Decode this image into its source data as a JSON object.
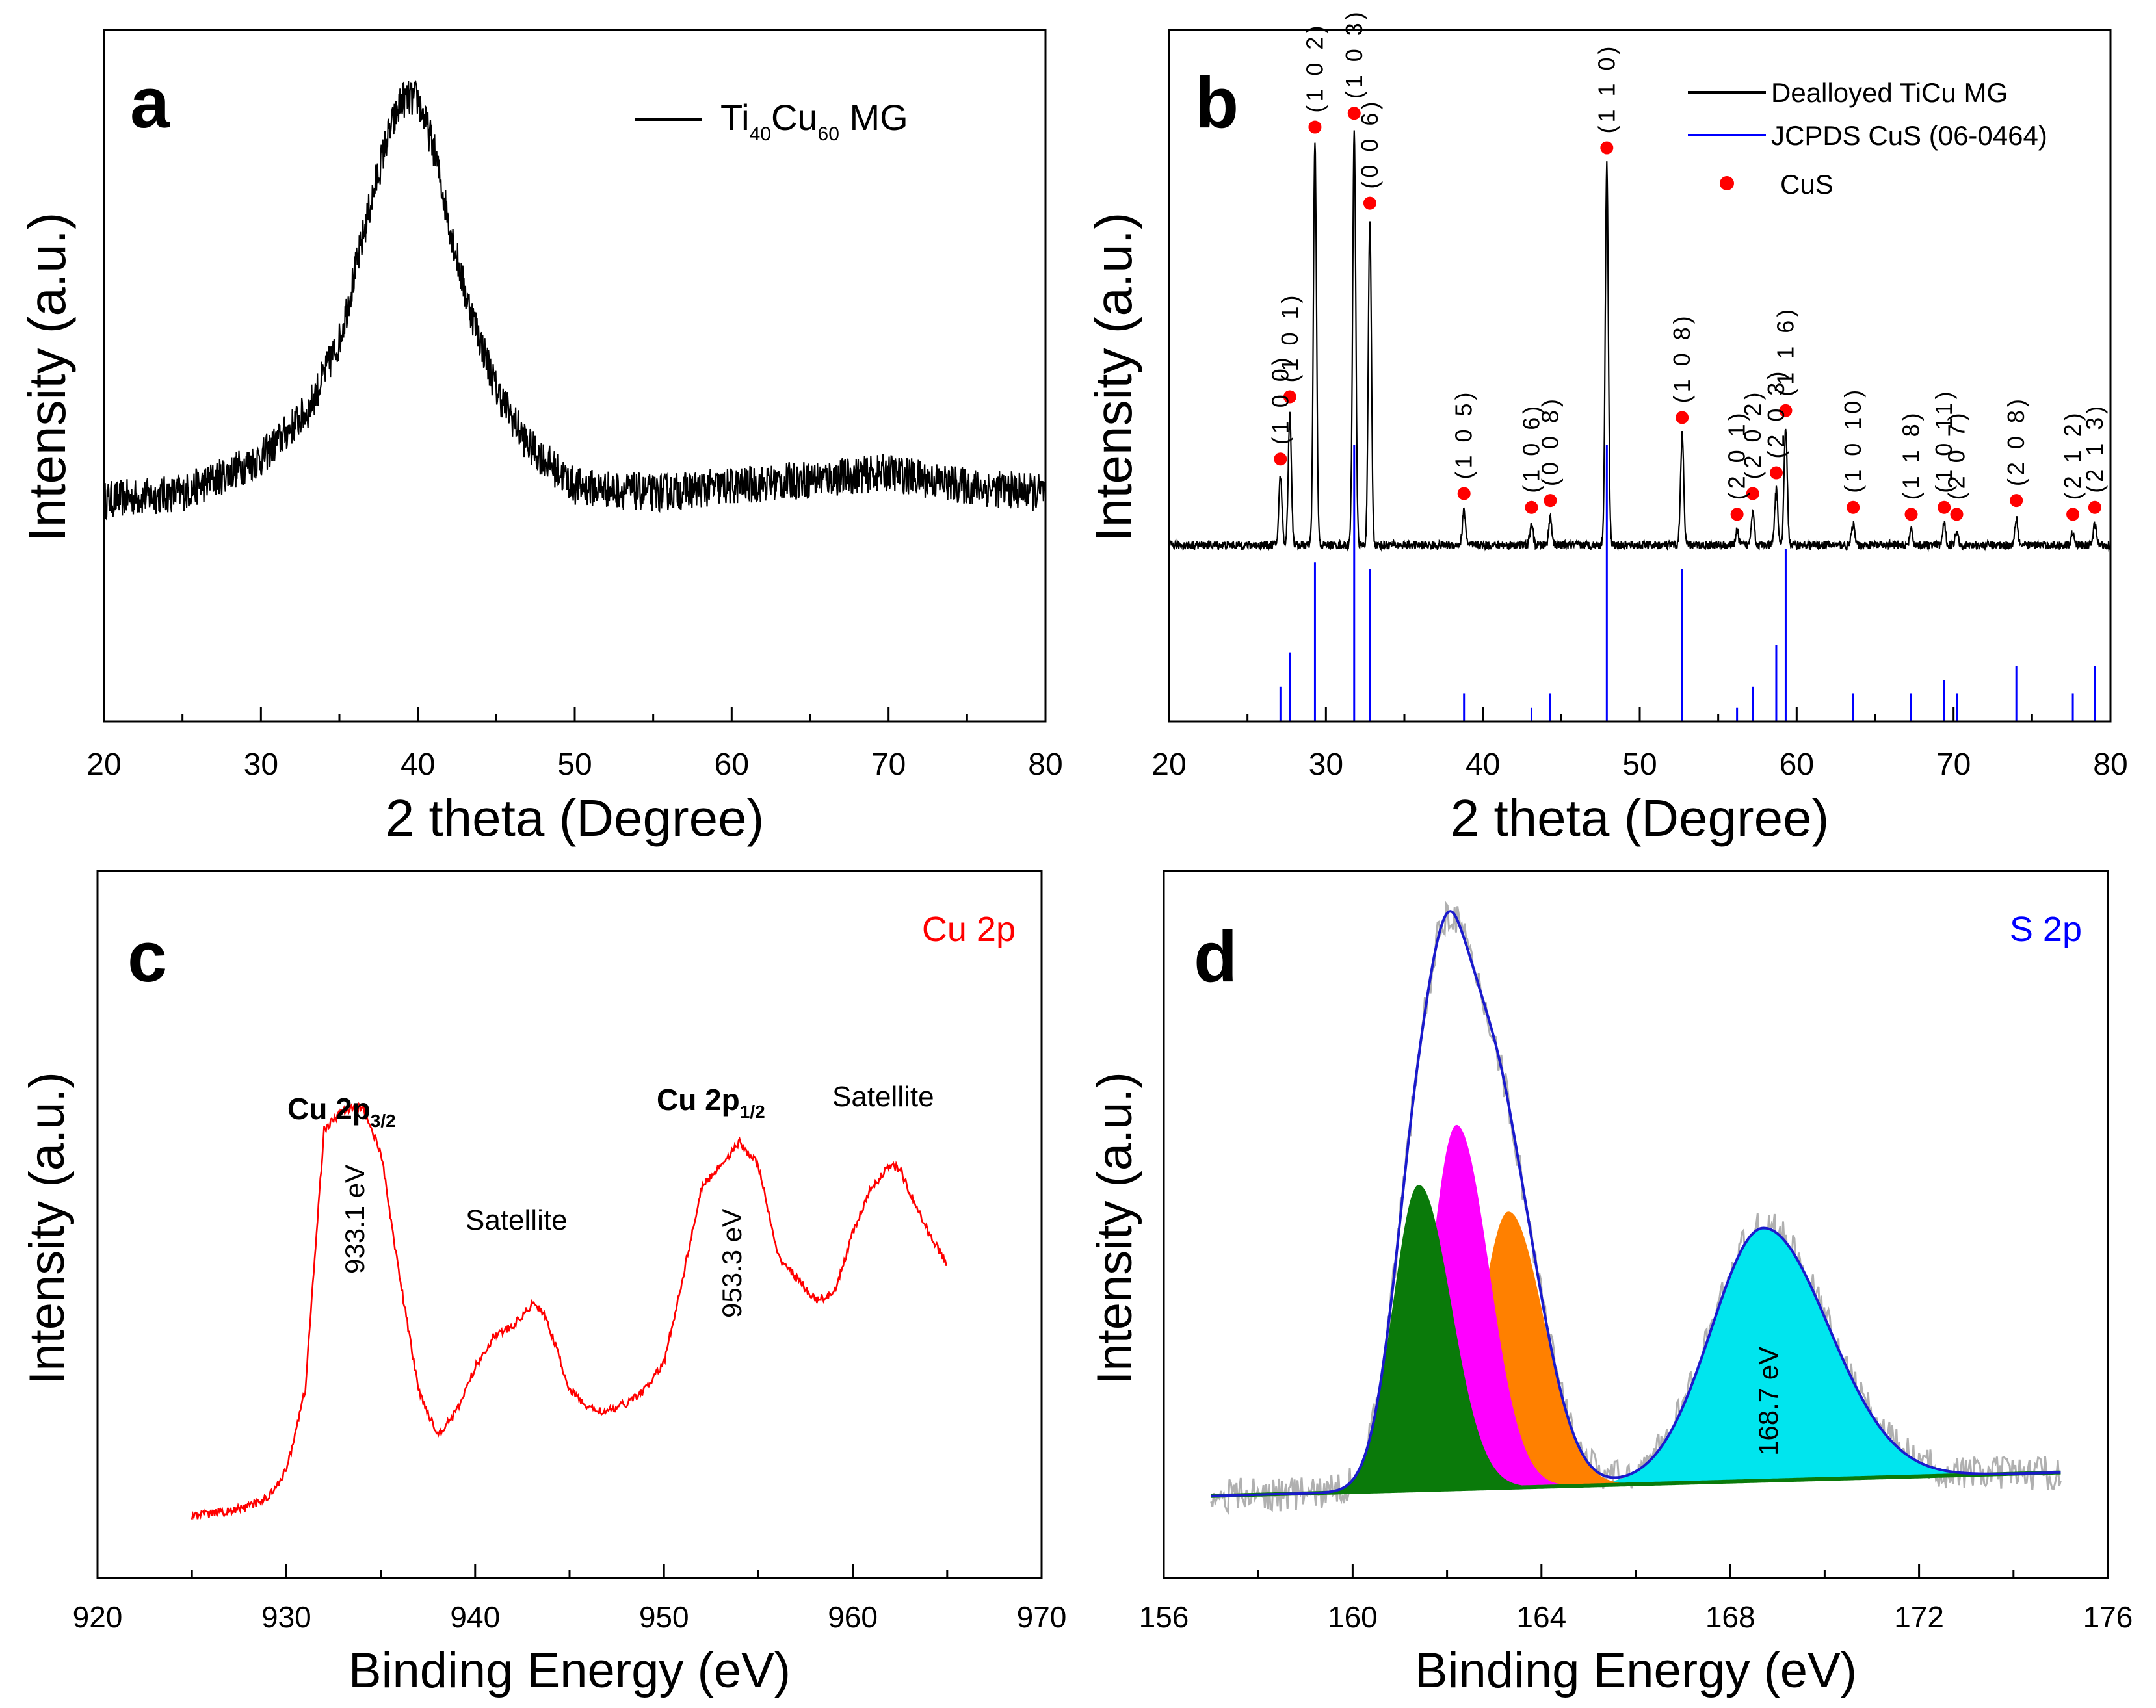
{
  "chart_data": [
    {
      "panel": "a",
      "type": "line",
      "xlabel": "2 theta (Degree)",
      "ylabel": "Intensity (a.u.)",
      "xlim": [
        20,
        80
      ],
      "xticks": [
        "20",
        "30",
        "40",
        "50",
        "60",
        "70",
        "80"
      ],
      "legend_position": "top-right",
      "series": [
        {
          "name": "Ti40Cu60 MG",
          "legend_parts": [
            "Ti",
            "40",
            "Cu",
            "60",
            " MG"
          ],
          "color": "#000000",
          "x": [
            20,
            25,
            30,
            33,
            35,
            37,
            38,
            39,
            40,
            41,
            42,
            43,
            45,
            47,
            50,
            55,
            60,
            65,
            70,
            75,
            80
          ],
          "y": [
            0.32,
            0.33,
            0.38,
            0.45,
            0.55,
            0.75,
            0.84,
            0.9,
            0.9,
            0.83,
            0.72,
            0.62,
            0.48,
            0.4,
            0.34,
            0.33,
            0.34,
            0.35,
            0.36,
            0.34,
            0.33
          ]
        }
      ]
    },
    {
      "panel": "b",
      "type": "line",
      "xlabel": "2 theta (Degree)",
      "ylabel": "Intensity (a.u.)",
      "xlim": [
        20,
        80
      ],
      "xticks": [
        "20",
        "30",
        "40",
        "50",
        "60",
        "70",
        "80"
      ],
      "legend_position": "top-right",
      "legend": [
        {
          "label": "Dealloyed TiCu MG",
          "color": "#000000",
          "marker": "line"
        },
        {
          "label": "JCPDS CuS (06-0464)",
          "color": "#0000ff",
          "marker": "line"
        },
        {
          "label": "CuS",
          "color": "#ff0000",
          "marker": "dot"
        }
      ],
      "peaks": [
        {
          "x": 27.1,
          "h": 0.1,
          "label": "(1 0 0)"
        },
        {
          "x": 27.7,
          "h": 0.19,
          "label": "(1 0 1)"
        },
        {
          "x": 29.3,
          "h": 0.58,
          "label": "(1 0 2)"
        },
        {
          "x": 31.8,
          "h": 0.6,
          "label": "(1 0 3)"
        },
        {
          "x": 32.8,
          "h": 0.47,
          "label": "(0 0 6)"
        },
        {
          "x": 38.8,
          "h": 0.05,
          "label": "(1 0 5)"
        },
        {
          "x": 43.1,
          "h": 0.03,
          "label": "(1 0 6)"
        },
        {
          "x": 44.3,
          "h": 0.04,
          "label": "(0 0 8)"
        },
        {
          "x": 47.9,
          "h": 0.55,
          "label": "(1 1 0)"
        },
        {
          "x": 52.7,
          "h": 0.16,
          "label": "(1 0 8)"
        },
        {
          "x": 56.2,
          "h": 0.02,
          "label": "(2 0 1)"
        },
        {
          "x": 57.2,
          "h": 0.05,
          "label": "(2 0 2)"
        },
        {
          "x": 58.7,
          "h": 0.08,
          "label": "(2 0 3)"
        },
        {
          "x": 59.3,
          "h": 0.17,
          "label": "(1 1 6)"
        },
        {
          "x": 63.6,
          "h": 0.03,
          "label": "(1 0 10)"
        },
        {
          "x": 67.3,
          "h": 0.02,
          "label": "(1 1 8)"
        },
        {
          "x": 69.4,
          "h": 0.03,
          "label": "(1 0 11)"
        },
        {
          "x": 70.2,
          "h": 0.02,
          "label": "(2 0 7)"
        },
        {
          "x": 74.0,
          "h": 0.04,
          "label": "(2 0 8)"
        },
        {
          "x": 77.6,
          "h": 0.02,
          "label": "(2 1 2)"
        },
        {
          "x": 79.0,
          "h": 0.03,
          "label": "(2 1 3)"
        }
      ],
      "reference_lines": [
        {
          "x": 27.1,
          "h": 0.05
        },
        {
          "x": 27.7,
          "h": 0.1
        },
        {
          "x": 29.3,
          "h": 0.23
        },
        {
          "x": 31.8,
          "h": 0.4
        },
        {
          "x": 32.8,
          "h": 0.22
        },
        {
          "x": 38.8,
          "h": 0.04
        },
        {
          "x": 43.1,
          "h": 0.02
        },
        {
          "x": 44.3,
          "h": 0.04
        },
        {
          "x": 47.9,
          "h": 0.4
        },
        {
          "x": 52.7,
          "h": 0.22
        },
        {
          "x": 56.2,
          "h": 0.02
        },
        {
          "x": 57.2,
          "h": 0.05
        },
        {
          "x": 58.7,
          "h": 0.11
        },
        {
          "x": 59.3,
          "h": 0.25
        },
        {
          "x": 63.6,
          "h": 0.04
        },
        {
          "x": 67.3,
          "h": 0.04
        },
        {
          "x": 69.4,
          "h": 0.06
        },
        {
          "x": 70.2,
          "h": 0.04
        },
        {
          "x": 74.0,
          "h": 0.08
        },
        {
          "x": 77.6,
          "h": 0.04
        },
        {
          "x": 79.0,
          "h": 0.08
        }
      ]
    },
    {
      "panel": "c",
      "type": "line",
      "title": "Cu 2p",
      "xlabel": "Binding Energy (eV)",
      "ylabel": "Intensity (a.u.)",
      "xlim": [
        920,
        970
      ],
      "xticks": [
        "920",
        "930",
        "940",
        "950",
        "960",
        "970"
      ],
      "series": [
        {
          "name": "Cu 2p",
          "color": "#ff0000",
          "x": [
            925,
            927,
            928,
            929,
            930,
            931,
            932,
            933,
            934,
            935,
            936,
            937,
            938,
            939,
            940,
            941,
            942,
            943,
            943.5,
            944,
            945,
            946,
            947,
            948,
            949,
            950,
            951,
            952,
            953,
            954,
            955,
            956,
            957,
            958,
            959,
            960,
            961,
            962,
            962.5,
            963,
            964,
            965
          ],
          "y": [
            0.02,
            0.03,
            0.04,
            0.06,
            0.12,
            0.3,
            0.88,
            0.92,
            0.93,
            0.83,
            0.55,
            0.3,
            0.2,
            0.25,
            0.35,
            0.42,
            0.44,
            0.49,
            0.48,
            0.43,
            0.3,
            0.26,
            0.25,
            0.27,
            0.3,
            0.36,
            0.55,
            0.75,
            0.8,
            0.85,
            0.8,
            0.6,
            0.55,
            0.5,
            0.51,
            0.65,
            0.75,
            0.8,
            0.79,
            0.74,
            0.65,
            0.58
          ]
        }
      ],
      "annotations": [
        {
          "text": "Cu 2p",
          "sub": "3/2",
          "bold": true
        },
        {
          "text": "933.1 eV",
          "rotated": true
        },
        {
          "text": "Satellite"
        },
        {
          "text": "Cu 2p",
          "sub": "1/2",
          "bold": true
        },
        {
          "text": "953.3 eV",
          "rotated": true
        },
        {
          "text": "Satellite"
        }
      ]
    },
    {
      "panel": "d",
      "type": "area",
      "title": "S 2p",
      "xlabel": "Binding Energy (eV)",
      "ylabel": "Intensity (a.u.)",
      "xlim": [
        156,
        176
      ],
      "xticks": [
        "156",
        "160",
        "164",
        "168",
        "172",
        "176"
      ],
      "series": [
        {
          "name": "background",
          "color": "#0a7a0a",
          "start": [
            157,
            0.06
          ],
          "end": [
            175,
            0.1
          ]
        },
        {
          "name": "component 1",
          "color": "#0a7a0a",
          "center": 161.4,
          "height": 0.52,
          "width": 0.55
        },
        {
          "name": "component 2",
          "color": "#ff00ff",
          "center": 162.2,
          "height": 0.62,
          "width": 0.55
        },
        {
          "name": "component 3",
          "color": "#ff8000",
          "center": 163.3,
          "height": 0.47,
          "width": 0.6
        },
        {
          "name": "component 4",
          "color": "#00e5ee",
          "center": 168.7,
          "height": 0.43,
          "width": 1.1
        },
        {
          "name": "envelope",
          "color": "#1a1acc"
        },
        {
          "name": "raw data",
          "color": "#b0b0b0"
        }
      ],
      "annotations": [
        {
          "text": "168.7 eV",
          "rotated": true
        }
      ]
    }
  ]
}
